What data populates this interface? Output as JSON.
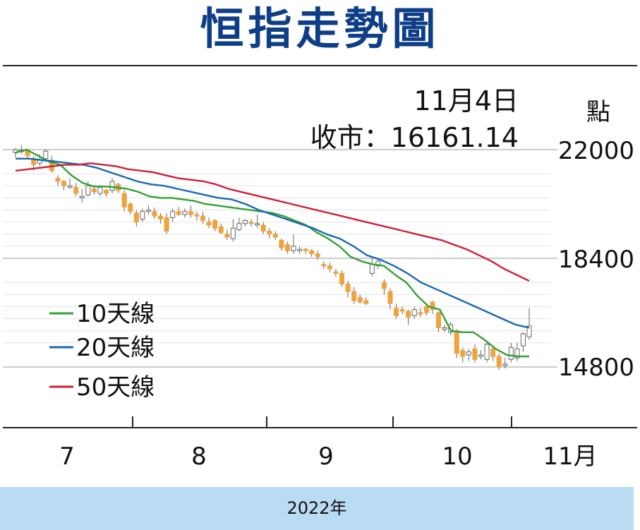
{
  "title": "恒指走勢圖",
  "footer_label": "2022年",
  "chart_data": {
    "type": "candlestick",
    "title": "恒指走勢圖",
    "unit_label": "點",
    "annotation": {
      "date": "11月4日",
      "close_text": "收市：16161.14"
    },
    "ylim": [
      14500,
      22300
    ],
    "y_ticks": [
      "22000",
      "18400",
      "14800"
    ],
    "x_ticks": [
      "7",
      "8",
      "9",
      "10",
      "11月"
    ],
    "xlabel": "2022年",
    "colors": {
      "up": "#ffffff",
      "down": "#f0a23c",
      "wick": "#666666",
      "grid": "#bbbbbb",
      "minor_grid": "#e4e4e4"
    },
    "candles": [
      [
        21900,
        22000,
        22050,
        21750
      ],
      [
        21950,
        21980,
        22150,
        21850
      ],
      [
        21980,
        21800,
        22020,
        21700
      ],
      [
        21700,
        21500,
        21780,
        21300
      ],
      [
        21550,
        21650,
        21850,
        21450
      ],
      [
        21700,
        21950,
        22000,
        21600
      ],
      [
        21650,
        21300,
        21800,
        21250
      ],
      [
        21050,
        20950,
        21150,
        20800
      ],
      [
        20950,
        20800,
        21000,
        20650
      ],
      [
        20800,
        20800,
        21050,
        20700
      ],
      [
        20750,
        20550,
        20900,
        20450
      ],
      [
        20400,
        20450,
        20700,
        20250
      ],
      [
        20500,
        20800,
        20950,
        20450
      ],
      [
        20700,
        20600,
        20820,
        20500
      ],
      [
        20550,
        20750,
        20820,
        20450
      ],
      [
        20650,
        20550,
        20700,
        20450
      ],
      [
        20650,
        20950,
        21050,
        20550
      ],
      [
        20850,
        20650,
        20900,
        20550
      ],
      [
        20550,
        20100,
        20650,
        19950
      ],
      [
        20200,
        19950,
        20250,
        19850
      ],
      [
        19900,
        19600,
        20000,
        19450
      ],
      [
        19700,
        19950,
        20050,
        19600
      ],
      [
        20000,
        20000,
        20150,
        19850
      ],
      [
        19950,
        19800,
        20080,
        19700
      ],
      [
        19800,
        19700,
        19900,
        19550
      ],
      [
        19750,
        19300,
        19900,
        19200
      ],
      [
        19750,
        19950,
        20050,
        19600
      ],
      [
        19950,
        19850,
        20100,
        19800
      ],
      [
        19850,
        19950,
        20050,
        19750
      ],
      [
        19950,
        19850,
        20150,
        19750
      ],
      [
        19850,
        19800,
        19950,
        19650
      ],
      [
        19800,
        19650,
        19950,
        19550
      ],
      [
        19600,
        19500,
        19750,
        19400
      ],
      [
        19650,
        19400,
        19700,
        19300
      ],
      [
        19450,
        19250,
        19550,
        19200
      ],
      [
        19200,
        19100,
        19350,
        19000
      ],
      [
        19050,
        19400,
        19700,
        18950
      ],
      [
        19350,
        19550,
        19750,
        19300
      ],
      [
        19550,
        19650,
        19700,
        19450
      ],
      [
        19600,
        19550,
        19700,
        19450
      ],
      [
        19550,
        19550,
        19850,
        19400
      ],
      [
        19500,
        19300,
        19600,
        19200
      ],
      [
        19300,
        19200,
        19400,
        19050
      ],
      [
        19200,
        19100,
        19300,
        19000
      ],
      [
        19000,
        18750,
        19050,
        18650
      ],
      [
        18850,
        18650,
        18950,
        18550
      ],
      [
        18650,
        18800,
        19200,
        18550
      ],
      [
        18650,
        18700,
        18800,
        18550
      ],
      [
        18700,
        18650,
        18750,
        18550
      ],
      [
        18650,
        18550,
        18700,
        18450
      ],
      [
        18550,
        18450,
        18650,
        18350
      ],
      [
        18200,
        18150,
        18300,
        18050
      ],
      [
        18150,
        18050,
        18250,
        17950
      ],
      [
        17950,
        17900,
        18050,
        17800
      ],
      [
        17900,
        17550,
        18000,
        17450
      ],
      [
        17550,
        17300,
        17650,
        17100
      ],
      [
        17300,
        17000,
        17450,
        16900
      ],
      [
        17100,
        16950,
        17200,
        16900
      ],
      [
        17000,
        16900,
        17100,
        16850
      ],
      [
        17900,
        18200,
        18400,
        17800
      ],
      [
        18150,
        18300,
        18400,
        18050
      ],
      [
        17600,
        17400,
        17700,
        17200
      ],
      [
        17300,
        16900,
        17400,
        16700
      ],
      [
        16750,
        16500,
        16900,
        16400
      ],
      [
        16700,
        16650,
        16800,
        16550
      ],
      [
        16650,
        16450,
        16700,
        16200
      ],
      [
        16500,
        16700,
        16800,
        16400
      ],
      [
        16600,
        16550,
        16750,
        16450
      ],
      [
        16800,
        16600,
        16900,
        16500
      ],
      [
        16950,
        16700,
        17000,
        16550
      ],
      [
        16600,
        16100,
        16650,
        15950
      ],
      [
        16050,
        16100,
        16200,
        15950
      ],
      [
        15950,
        16200,
        16300,
        15850
      ],
      [
        16000,
        15250,
        16050,
        15100
      ],
      [
        15350,
        15150,
        15450,
        14950
      ],
      [
        15200,
        15300,
        15400,
        15000
      ],
      [
        15400,
        15050,
        15550,
        14950
      ],
      [
        15150,
        15200,
        15350,
        15050
      ],
      [
        15050,
        15550,
        15650,
        14950
      ],
      [
        15400,
        15150,
        15450,
        15000
      ],
      [
        15150,
        14800,
        15250,
        14700
      ],
      [
        14900,
        14900,
        15100,
        14750
      ],
      [
        15050,
        15450,
        15600,
        14950
      ],
      [
        15100,
        15400,
        15600,
        15000
      ],
      [
        15500,
        15900,
        15950,
        15300
      ],
      [
        15800,
        16161.14,
        16750,
        15700
      ]
    ],
    "series": [
      {
        "name": "10天線",
        "color": "#34a034",
        "values": [
          21900,
          22000,
          21800,
          21600,
          21500,
          21150,
          20900,
          20780,
          20780,
          20750,
          20700,
          20600,
          20450,
          20400,
          20400,
          20350,
          20300,
          20200,
          20150,
          20100,
          20050,
          20000,
          19950,
          19900,
          19800,
          19650,
          19500,
          19250,
          19050,
          18800,
          18450,
          18300,
          18200,
          18150,
          17850,
          17600,
          17150,
          16800,
          16700,
          16000,
          15950,
          15950,
          15700,
          15400,
          15200,
          15150,
          15150
        ]
      },
      {
        "name": "20天線",
        "color": "#1a6ab0",
        "values": [
          21700,
          21700,
          21650,
          21600,
          21550,
          21500,
          21400,
          21250,
          21100,
          20950,
          20850,
          20800,
          20700,
          20600,
          20500,
          20400,
          20350,
          20200,
          20000,
          19850,
          19700,
          19550,
          19400,
          19200,
          19050,
          18800,
          18500,
          18350,
          18150,
          17900,
          17600,
          17400,
          17200,
          17000,
          16800,
          16600,
          16400,
          16200,
          16100
        ]
      },
      {
        "name": "50天線",
        "color": "#d0203a",
        "values": [
          21300,
          21350,
          21400,
          21450,
          21500,
          21500,
          21550,
          21500,
          21450,
          21350,
          21300,
          21250,
          21150,
          21050,
          21000,
          20950,
          20850,
          20700,
          20600,
          20500,
          20400,
          20300,
          20200,
          20100,
          20000,
          19900,
          19800,
          19700,
          19600,
          19500,
          19400,
          19300,
          19200,
          19100,
          19000,
          18850,
          18700,
          18500,
          18300,
          18050,
          17850,
          17650
        ]
      }
    ]
  }
}
